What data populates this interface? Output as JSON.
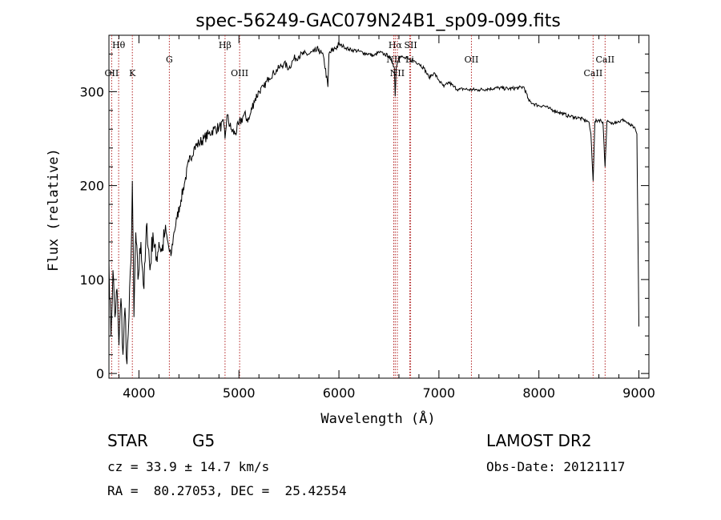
{
  "chart_data": {
    "type": "line",
    "title": "spec-56249-GAC079N24B1_sp09-099.fits",
    "xlabel": "Wavelength (Å)",
    "ylabel": "Flux (relative)",
    "xlim": [
      3700,
      9100
    ],
    "ylim": [
      -5,
      360
    ],
    "xticks": [
      4000,
      5000,
      6000,
      7000,
      8000,
      9000
    ],
    "yticks": [
      0,
      100,
      200,
      300
    ],
    "grid": false,
    "spectral_lines": [
      {
        "label": "Hθ",
        "x": 3797,
        "row": 0
      },
      {
        "label": "OII",
        "x": 3727,
        "row": 2
      },
      {
        "label": "K",
        "x": 3934,
        "row": 2
      },
      {
        "label": "G",
        "x": 4304,
        "row": 1
      },
      {
        "label": "Hβ",
        "x": 4861,
        "row": 0
      },
      {
        "label": "OIII",
        "x": 5007,
        "row": 2
      },
      {
        "label": "Hα",
        "x": 6563,
        "row": 0
      },
      {
        "label": "SII",
        "x": 6717,
        "row": 0
      },
      {
        "label": "NII",
        "x": 6548,
        "row": 1
      },
      {
        "label": "NII",
        "x": 6584,
        "row": 2
      },
      {
        "label": "Li",
        "x": 6708,
        "row": 1
      },
      {
        "label": "OII",
        "x": 7325,
        "row": 1
      },
      {
        "label": "CaII",
        "x": 8542,
        "row": 2
      },
      {
        "label": "CaII",
        "x": 8662,
        "row": 1
      }
    ],
    "series": [
      {
        "x": [
          3700,
          3720,
          3740,
          3760,
          3780,
          3800,
          3820,
          3840,
          3860,
          3880,
          3900,
          3920,
          3934,
          3950,
          3968,
          3990,
          4020,
          4050,
          4080,
          4110,
          4140,
          4170,
          4200,
          4230,
          4260,
          4290,
          4304,
          4320,
          4350,
          4380,
          4420,
          4460,
          4500,
          4550,
          4600,
          4650,
          4700,
          4750,
          4800,
          4850,
          4861,
          4880,
          4920,
          4960,
          5000,
          5050,
          5100,
          5150,
          5200,
          5250,
          5300,
          5350,
          5400,
          5450,
          5500,
          5550,
          5600,
          5650,
          5700,
          5750,
          5800,
          5850,
          5890,
          5900,
          5950,
          6000,
          6050,
          6100,
          6150,
          6200,
          6250,
          6300,
          6350,
          6400,
          6450,
          6500,
          6540,
          6555,
          6563,
          6572,
          6600,
          6650,
          6700,
          6750,
          6800,
          6850,
          6900,
          6950,
          7000,
          7050,
          7100,
          7150,
          7200,
          7250,
          7300,
          7400,
          7500,
          7600,
          7700,
          7800,
          7850,
          7900,
          7950,
          8000,
          8050,
          8100,
          8150,
          8200,
          8250,
          8300,
          8350,
          8400,
          8450,
          8498,
          8520,
          8542,
          8560,
          8600,
          8640,
          8662,
          8680,
          8720,
          8760,
          8800,
          8850,
          8900,
          8950,
          8980,
          8990,
          9000
        ],
        "y": [
          120,
          40,
          110,
          60,
          90,
          30,
          80,
          20,
          70,
          10,
          60,
          120,
          205,
          60,
          150,
          100,
          140,
          90,
          160,
          110,
          150,
          120,
          140,
          130,
          150,
          140,
          130,
          125,
          150,
          165,
          185,
          205,
          225,
          240,
          245,
          250,
          255,
          260,
          262,
          265,
          250,
          275,
          260,
          255,
          265,
          275,
          270,
          290,
          300,
          305,
          315,
          320,
          325,
          330,
          325,
          335,
          338,
          340,
          340,
          342,
          345,
          335,
          305,
          340,
          345,
          350,
          348,
          345,
          344,
          343,
          341,
          340,
          338,
          342,
          340,
          338,
          330,
          325,
          295,
          325,
          338,
          336,
          334,
          333,
          330,
          325,
          315,
          320,
          312,
          305,
          310,
          305,
          302,
          303,
          302,
          302,
          303,
          304,
          303,
          304,
          305,
          290,
          287,
          285,
          285,
          282,
          280,
          278,
          276,
          274,
          273,
          272,
          270,
          268,
          255,
          205,
          268,
          270,
          268,
          220,
          268,
          266,
          268,
          268,
          270,
          265,
          262,
          255,
          150,
          50
        ]
      }
    ]
  },
  "info": {
    "class_label": "STAR",
    "subclass_label": "G5",
    "survey": "LAMOST DR2",
    "velocity": "cz = 33.9 ± 14.7 km/s",
    "obs_date": "Obs-Date: 20121117",
    "coords": "RA =  80.27053, DEC =  25.42554"
  }
}
